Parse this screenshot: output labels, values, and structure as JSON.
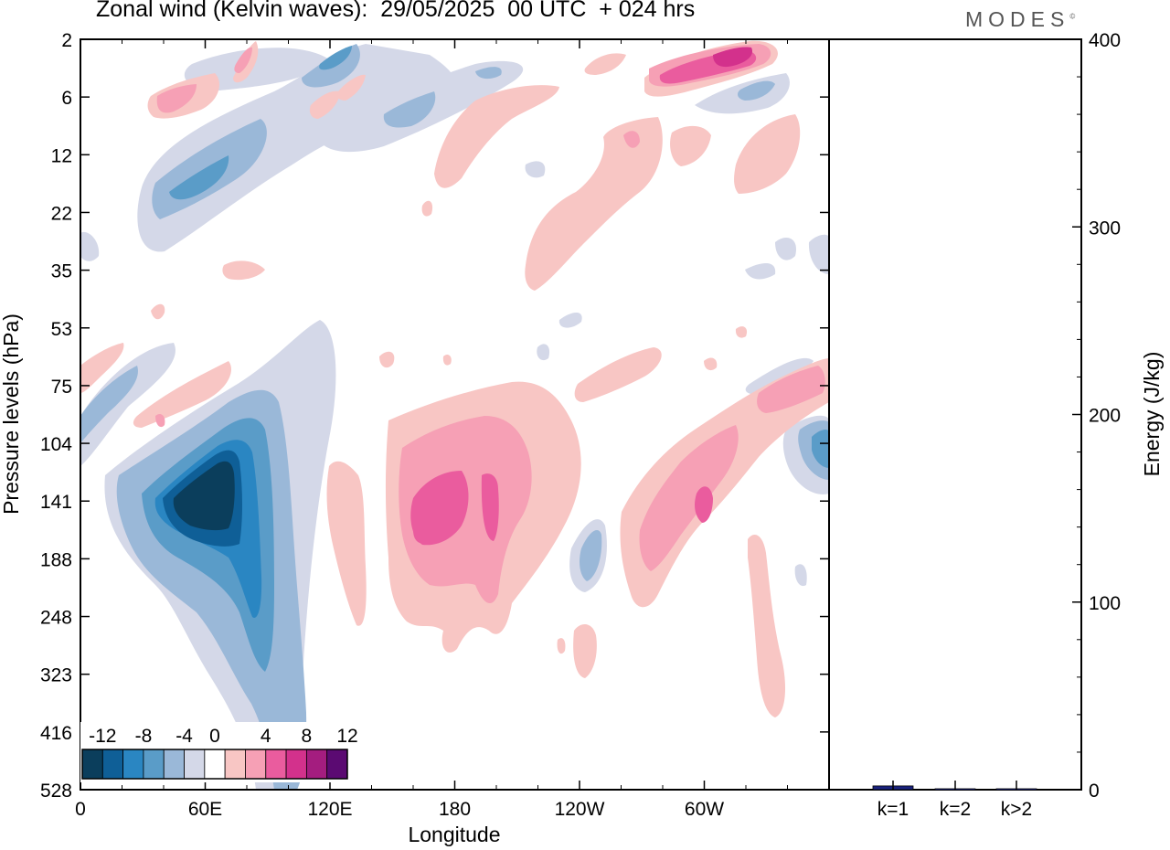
{
  "title": "Zonal wind (Kelvin waves):  29/05/2025  00 UTC  + 024 hrs",
  "brand": "MODES",
  "brand_mark": "©",
  "chart_data": [
    {
      "type": "heatmap",
      "xlabel": "Longitude",
      "ylabel": "Pressure levels (hPa)",
      "x_ticks": [
        "0",
        "60E",
        "120E",
        "180",
        "120W",
        "60W"
      ],
      "x_tick_values": [
        0,
        60,
        120,
        180,
        240,
        300
      ],
      "xlim": [
        0,
        360
      ],
      "y_ticks": [
        "2",
        "6",
        "12",
        "22",
        "35",
        "53",
        "75",
        "104",
        "141",
        "188",
        "248",
        "323",
        "416",
        "528"
      ],
      "y_scale": "categorical pressure levels, top to bottom",
      "colorbar": {
        "labels": [
          "-12",
          "-8",
          "-4",
          "0",
          "4",
          "8",
          "12"
        ],
        "levels": [
          -14,
          -12,
          -10,
          -8,
          -6,
          -4,
          -2,
          2,
          4,
          6,
          8,
          10,
          12,
          14
        ],
        "colors": [
          "#0b3e5c",
          "#0f5f97",
          "#2a86c2",
          "#5a9cc8",
          "#9ab8d8",
          "#d4d8e8",
          "#ffffff",
          "#f8c6c4",
          "#f6a0b5",
          "#ea5c9e",
          "#d3318c",
          "#a41d7f",
          "#5b0a72"
        ]
      },
      "features": [
        {
          "sign": "negative",
          "description": "strong easterly core",
          "lon_range": [
            40,
            75
          ],
          "level_range": [
            "104",
            "188"
          ],
          "min_value": -14
        },
        {
          "sign": "negative",
          "description": "easterly tongue extending down",
          "lon_range": [
            55,
            110
          ],
          "level_range": [
            "53",
            "416"
          ]
        },
        {
          "sign": "negative",
          "description": "upper stratosphere easterlies",
          "lon_range": [
            35,
            120
          ],
          "level_range": [
            "2",
            "22"
          ]
        },
        {
          "sign": "positive",
          "description": "westerly maximum",
          "lon_range": [
            155,
            210
          ],
          "level_range": [
            "104",
            "248"
          ],
          "max_value": 8
        },
        {
          "sign": "positive",
          "description": "westerly band",
          "lon_range": [
            270,
            330
          ],
          "level_range": [
            "75",
            "248"
          ],
          "max_value": 8
        },
        {
          "sign": "positive",
          "description": "upper westerly maximum",
          "lon_range": [
            280,
            335
          ],
          "level_range": [
            "2",
            "6"
          ],
          "max_value": 12
        }
      ]
    },
    {
      "type": "bar",
      "categories": [
        "k=1",
        "k=2",
        "k>2"
      ],
      "values": [
        2,
        0.5,
        0.5
      ],
      "ylabel": "Energy (J/kg)",
      "y_ticks": [
        0,
        100,
        200,
        300,
        400
      ],
      "ylim": [
        0,
        400
      ],
      "bar_color": "#1a237e"
    }
  ]
}
